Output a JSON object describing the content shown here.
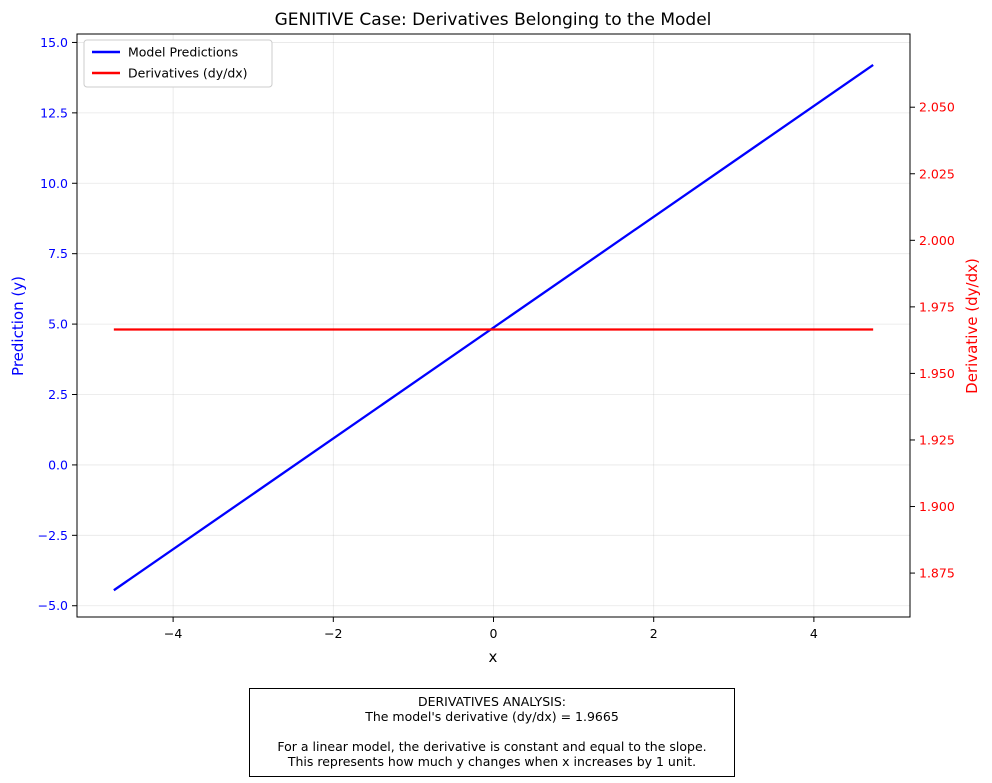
{
  "chart_data": {
    "type": "line",
    "title": "GENITIVE Case: Derivatives Belonging to the Model",
    "xlabel": "x",
    "ylabel_left": "Prediction (y)",
    "ylabel_right": "Derivative (dy/dx)",
    "xlim": [
      -5.2,
      5.2
    ],
    "ylim_left": [
      -5.4,
      15.3
    ],
    "ylim_right": [
      1.8585,
      2.0775
    ],
    "x_ticks": [
      -4,
      -2,
      0,
      2,
      4
    ],
    "x_tick_labels": [
      "−4",
      "−2",
      "0",
      "2",
      "4"
    ],
    "y_left_ticks": [
      -5.0,
      -2.5,
      0.0,
      2.5,
      5.0,
      7.5,
      10.0,
      12.5,
      15.0
    ],
    "y_left_tick_labels": [
      "−5.0",
      "−2.5",
      "0.0",
      "2.5",
      "5.0",
      "7.5",
      "10.0",
      "12.5",
      "15.0"
    ],
    "y_right_ticks": [
      1.875,
      1.9,
      1.925,
      1.95,
      1.975,
      2.0,
      2.025,
      2.05
    ],
    "y_right_tick_labels": [
      "1.875",
      "1.900",
      "1.925",
      "1.950",
      "1.975",
      "2.000",
      "2.025",
      "2.050"
    ],
    "grid": true,
    "legend_position": "upper-left",
    "series": [
      {
        "name": "Model Predictions",
        "axis": "left",
        "color": "#0000ff",
        "x": [
          -4.74,
          4.74
        ],
        "y": [
          -4.45,
          14.2
        ]
      },
      {
        "name": "Derivatives (dy/dx)",
        "axis": "right",
        "color": "#ff0000",
        "x": [
          -4.74,
          4.74
        ],
        "y": [
          1.9665,
          1.9665
        ]
      }
    ]
  },
  "annotation": {
    "line1": "DERIVATIVES ANALYSIS:",
    "line2": "The model's derivative (dy/dx) = 1.9665",
    "line3": "For a linear model, the derivative is constant and equal to the slope.",
    "line4": "This represents how much y changes when x increases by 1 unit."
  }
}
